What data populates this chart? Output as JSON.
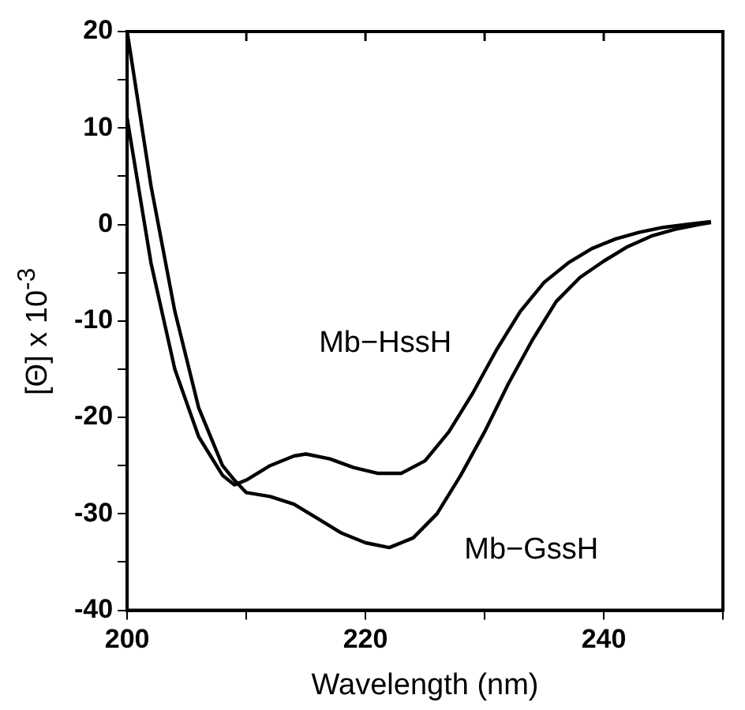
{
  "chart_data": {
    "type": "line",
    "xlabel": "Wavelength (nm)",
    "ylabel": "[Θ] x 10$^{-3}$",
    "xlim": [
      200,
      250
    ],
    "xticks": [
      200,
      {
        "value": 210,
        "label": null
      },
      220,
      {
        "value": 230,
        "label": null
      },
      240,
      {
        "value": 250,
        "label": null
      }
    ],
    "ylim": [
      -40,
      20
    ],
    "yticks": [
      -40,
      {
        "value": -35,
        "label": null
      },
      -30,
      {
        "value": -25,
        "label": null
      },
      -20,
      {
        "value": -15,
        "label": null
      },
      -10,
      {
        "value": -5,
        "label": null
      },
      0,
      {
        "value": 5,
        "label": null
      },
      10,
      {
        "value": 15,
        "label": null
      },
      20
    ],
    "grid": false,
    "legend": false,
    "marker": "none",
    "line_style": "solid",
    "series": [
      {
        "name": "Mb−HssH",
        "color": "#000000",
        "x": [
          200,
          202,
          204,
          206,
          208,
          209,
          210,
          212,
          214,
          215,
          217,
          219,
          221,
          223,
          225,
          227,
          229,
          231,
          233,
          235,
          237,
          239,
          241,
          243,
          245,
          247,
          249
        ],
        "values": [
          11,
          -4,
          -15,
          -22,
          -26,
          -27,
          -26.5,
          -25,
          -24,
          -23.8,
          -24.3,
          -25.2,
          -25.8,
          -25.8,
          -24.5,
          -21.5,
          -17.5,
          -13,
          -9,
          -6,
          -4,
          -2.5,
          -1.5,
          -0.8,
          -0.3,
          0,
          0.3
        ]
      },
      {
        "name": "Mb−GssH",
        "color": "#000000",
        "x": [
          200,
          202,
          204,
          206,
          208,
          209,
          210,
          212,
          214,
          216,
          218,
          220,
          222,
          224,
          226,
          228,
          230,
          232,
          234,
          236,
          238,
          240,
          242,
          244,
          246,
          248,
          249
        ],
        "values": [
          20,
          4,
          -9,
          -19,
          -25,
          -26.5,
          -27.8,
          -28.2,
          -29,
          -30.5,
          -32,
          -33,
          -33.5,
          -32.5,
          -30,
          -26,
          -21.5,
          -16.5,
          -12,
          -8,
          -5.5,
          -3.8,
          -2.3,
          -1.2,
          -0.5,
          0,
          0.2
        ]
      }
    ]
  }
}
